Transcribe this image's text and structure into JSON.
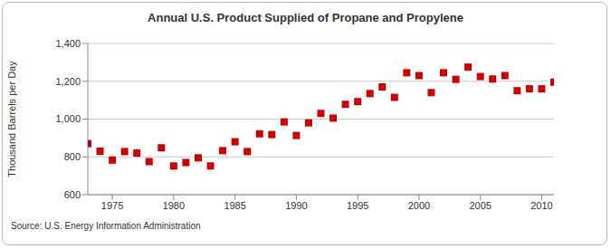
{
  "chart_data": {
    "type": "scatter",
    "title": "Annual U.S. Product Supplied of Propane and Propylene",
    "y_label": "Thousand Barrels per Day",
    "source": "Source: U.S. Energy Information Administration",
    "x": [
      1973,
      1974,
      1975,
      1976,
      1977,
      1978,
      1979,
      1980,
      1981,
      1982,
      1983,
      1984,
      1985,
      1986,
      1987,
      1988,
      1989,
      1990,
      1991,
      1992,
      1993,
      1994,
      1995,
      1996,
      1997,
      1998,
      1999,
      2000,
      2001,
      2002,
      2003,
      2004,
      2005,
      2006,
      2007,
      2008,
      2009,
      2010,
      2011
    ],
    "values": [
      870,
      830,
      783,
      828,
      820,
      775,
      848,
      752,
      770,
      795,
      752,
      833,
      880,
      828,
      922,
      918,
      985,
      913,
      980,
      1030,
      1005,
      1078,
      1092,
      1135,
      1170,
      1115,
      1245,
      1230,
      1140,
      1245,
      1210,
      1275,
      1225,
      1212,
      1230,
      1150,
      1160,
      1160,
      1195
    ],
    "color": "#cc0000",
    "marker": "square",
    "xlim": [
      1973,
      2011
    ],
    "xticks": [
      1975,
      1980,
      1985,
      1990,
      1995,
      2000,
      2005,
      2010
    ],
    "ylim": [
      600,
      1400
    ],
    "yticks": [
      600,
      800,
      {
        "value": 1000,
        "label": "1,000"
      },
      {
        "value": 1200,
        "label": "1,200"
      },
      {
        "value": 1400,
        "label": "1,400"
      }
    ],
    "grid": true
  }
}
